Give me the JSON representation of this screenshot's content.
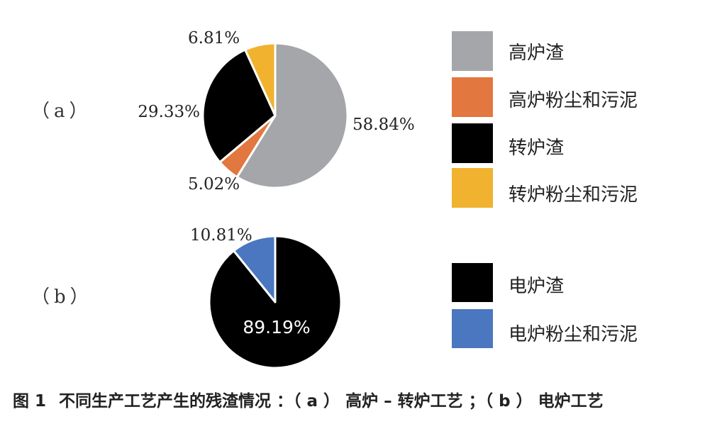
{
  "chart_data": [
    {
      "type": "pie",
      "panel_label": "（a）",
      "slices": [
        {
          "label": "高炉渣",
          "value": 58.84,
          "value_label": "58.84%",
          "color": "#a5a6aa"
        },
        {
          "label": "高炉粉尘和污泥",
          "value": 5.02,
          "value_label": "5.02%",
          "color": "#e2773f"
        },
        {
          "label": "转炉渣",
          "value": 29.33,
          "value_label": "29.33%",
          "color": "#000000"
        },
        {
          "label": "转炉粉尘和污泥",
          "value": 6.81,
          "value_label": "6.81%",
          "color": "#f0b22f"
        }
      ]
    },
    {
      "type": "pie",
      "panel_label": "（b）",
      "slices": [
        {
          "label": "电炉渣",
          "value": 89.19,
          "value_label": "89.19%",
          "color": "#000000"
        },
        {
          "label": "电炉粉尘和污泥",
          "value": 10.81,
          "value_label": "10.81%",
          "color": "#4a77bf"
        }
      ]
    }
  ],
  "caption": {
    "prefix": "图",
    "number": "1",
    "text": "不同生产工艺产生的残渣情况 ：（ a ） 高炉 – 转炉工艺 ；（ b ） 电炉工艺"
  }
}
